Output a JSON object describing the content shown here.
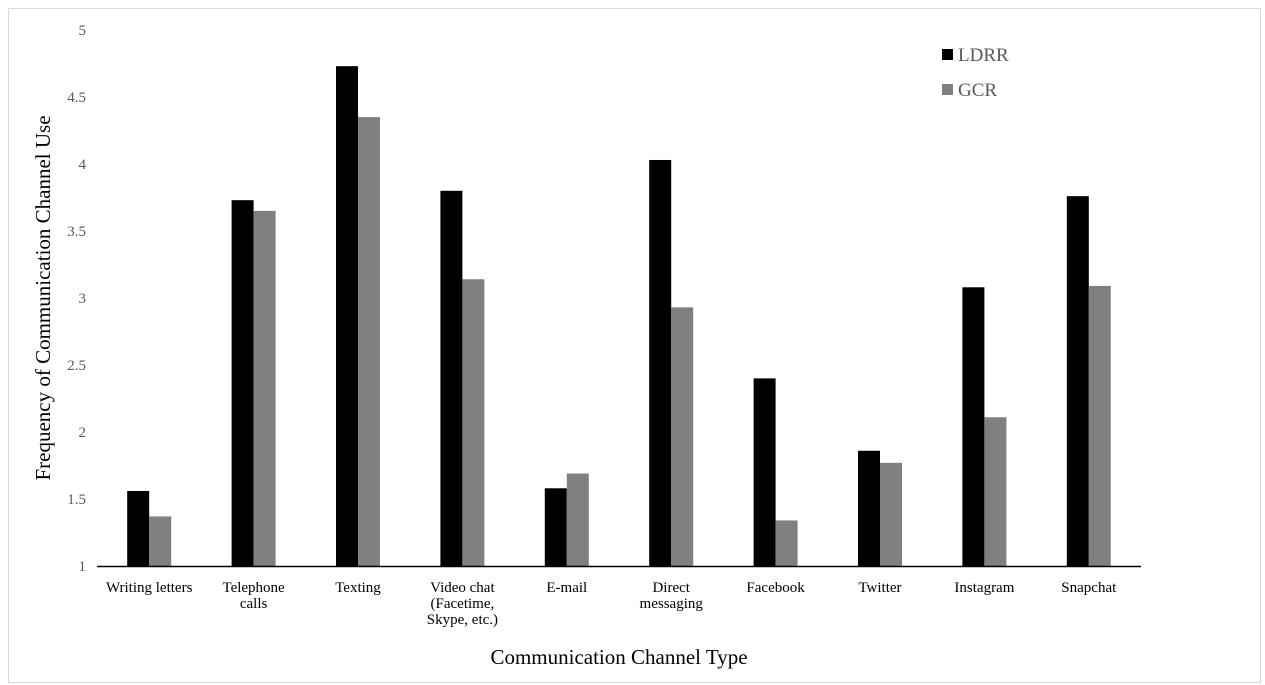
{
  "chart_data": {
    "type": "bar",
    "title": "",
    "xlabel": "Communication Channel Type",
    "ylabel": "Frequency of Communication Channel Use",
    "ylim": [
      1,
      5
    ],
    "yticks": [
      "1",
      "1.5",
      "2",
      "2.5",
      "3",
      "3.5",
      "4",
      "4.5",
      "5"
    ],
    "grid": false,
    "legend_position": "top-right",
    "categories": [
      [
        "Writing letters"
      ],
      [
        "Telephone",
        "calls"
      ],
      [
        "Texting"
      ],
      [
        "Video chat",
        "(Facetime,",
        "Skype, etc.)"
      ],
      [
        "E-mail"
      ],
      [
        "Direct",
        "messaging"
      ],
      [
        "Facebook"
      ],
      [
        "Twitter"
      ],
      [
        "Instagram"
      ],
      [
        "Snapchat"
      ]
    ],
    "series": [
      {
        "name": "LDRR",
        "color": "#000000",
        "values": [
          1.56,
          3.73,
          4.73,
          3.8,
          1.58,
          4.03,
          2.4,
          1.86,
          3.08,
          3.76
        ]
      },
      {
        "name": "GCR",
        "color": "#808080",
        "values": [
          1.37,
          3.65,
          4.35,
          3.14,
          1.69,
          2.93,
          1.34,
          1.77,
          2.11,
          3.09
        ]
      }
    ]
  }
}
